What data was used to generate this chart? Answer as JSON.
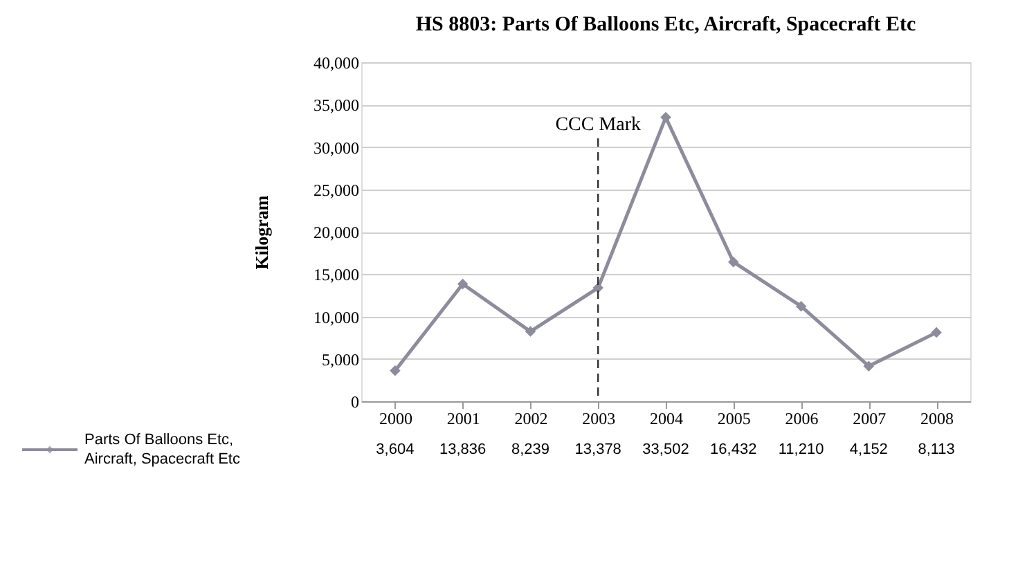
{
  "chart_data": {
    "type": "line",
    "title": "HS 8803: Parts Of Balloons Etc, Aircraft, Spacecraft Etc",
    "ylabel": "Kilogram",
    "categories": [
      "2000",
      "2001",
      "2002",
      "2003",
      "2004",
      "2005",
      "2006",
      "2007",
      "2008"
    ],
    "series": [
      {
        "name": "Parts Of Balloons Etc, Aircraft, Spacecraft Etc",
        "color": "#8c8c9c",
        "values": [
          3604,
          13836,
          8239,
          13378,
          33502,
          16432,
          11210,
          4152,
          8113
        ]
      }
    ],
    "ylim": [
      0,
      40000
    ],
    "yticks": [
      0,
      {
        "value": 5000,
        "label": "5,000"
      },
      {
        "value": 10000,
        "label": "10,000"
      },
      {
        "value": 15000,
        "label": "15,000"
      },
      {
        "value": 20000,
        "label": "20,000"
      },
      {
        "value": 25000,
        "label": "25,000"
      },
      {
        "value": 30000,
        "label": "30,000"
      },
      {
        "value": 35000,
        "label": "35,000"
      },
      {
        "value": 40000,
        "label": "40,000"
      }
    ],
    "ref_lines": [
      {
        "axis": "x",
        "value": "2003",
        "label": "CCC Mark",
        "line_style": "dashed",
        "color": "#333333"
      }
    ],
    "value_labels": [
      "3,604",
      "13,836",
      "8,239",
      "13,378",
      "33,502",
      "16,432",
      "11,210",
      "4,152",
      "8,113"
    ],
    "grid": "y",
    "legend": "bottom",
    "marker": "diamond",
    "line_style": "solid"
  }
}
